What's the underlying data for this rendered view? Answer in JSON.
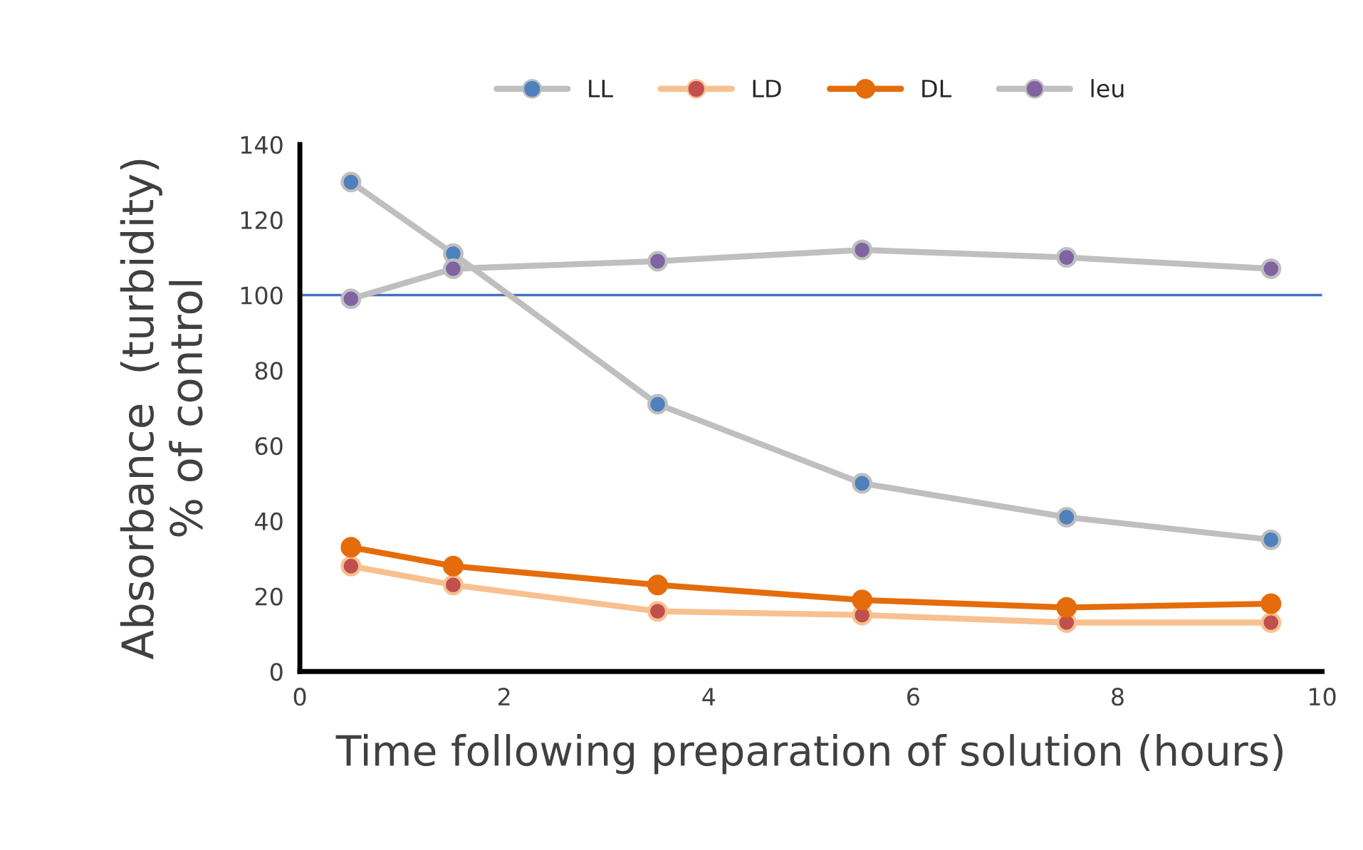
{
  "chart_data": {
    "type": "line",
    "xlabel": "Time following preparation of solution (hours)",
    "ylabel": "Absorbance  (turbidity)\n% of control",
    "x": [
      0.5,
      1.5,
      3.5,
      5.5,
      7.5,
      9.5
    ],
    "series": [
      {
        "name": "LL",
        "color": "#bfbfbf",
        "colors": [
          "#4f81bd",
          "#4f81bd",
          "#4f81bd",
          "#4f81bd",
          "#4f81bd",
          "#4f81bd"
        ],
        "values": [
          130,
          111,
          71,
          50,
          41,
          35
        ]
      },
      {
        "name": "LD",
        "color": "#f8c090",
        "colors": [
          "#c0504d",
          "#c0504d",
          "#c0504d",
          "#c0504d",
          "#c0504d",
          "#c0504d"
        ],
        "values": [
          28,
          23,
          16,
          15,
          13,
          13
        ]
      },
      {
        "name": "DL",
        "color": "#e46c0a",
        "colors": [
          "#e46c0a",
          "#e46c0a",
          "#e46c0a",
          "#e46c0a",
          "#e46c0a",
          "#e46c0a"
        ],
        "values": [
          33,
          28,
          23,
          19,
          17,
          18
        ]
      },
      {
        "name": "leu",
        "color": "#bfbfbf",
        "colors": [
          "#8064a2",
          "#8064a2",
          "#8064a2",
          "#8064a2",
          "#8064a2",
          "#8064a2"
        ],
        "values": [
          99,
          107,
          109,
          112,
          110,
          107
        ]
      }
    ],
    "xlim": [
      0,
      10
    ],
    "xticks": [
      0,
      2,
      4,
      6,
      8,
      10
    ],
    "ylim": [
      0,
      140
    ],
    "yticks": [
      0,
      20,
      40,
      60,
      80,
      100,
      120,
      140
    ],
    "ref_lines": [
      {
        "axis": "y",
        "value": 100,
        "color": "#4472c4"
      }
    ],
    "legend": "top",
    "marker": "circle",
    "grid": false
  }
}
